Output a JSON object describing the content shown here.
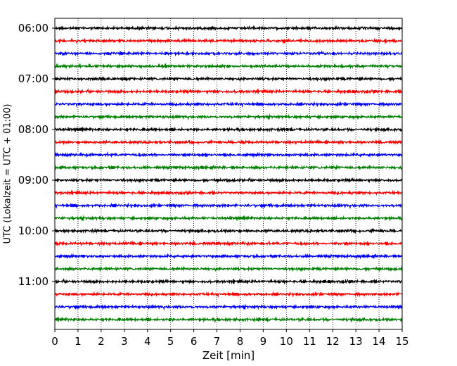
{
  "chart_data": {
    "type": "line",
    "title": "",
    "xlabel": "Zeit  [min]",
    "ylabel": "UTC (Lokalzeit = UTC + 01:00)",
    "xlim": [
      0,
      15
    ],
    "xticks": [
      "0",
      "1",
      "2",
      "3",
      "4",
      "5",
      "6",
      "7",
      "8",
      "9",
      "10",
      "11",
      "12",
      "13",
      "14",
      "15"
    ],
    "ytick_labels": [
      "06:00",
      "07:00",
      "08:00",
      "09:00",
      "10:00",
      "11:00"
    ],
    "grid": "vertical dotted",
    "trace_start": "06:00",
    "trace_interval_min": 15,
    "trace_count": 24,
    "trace_colors": [
      "#000000",
      "#ff0000",
      "#0000ff",
      "#008000"
    ]
  }
}
